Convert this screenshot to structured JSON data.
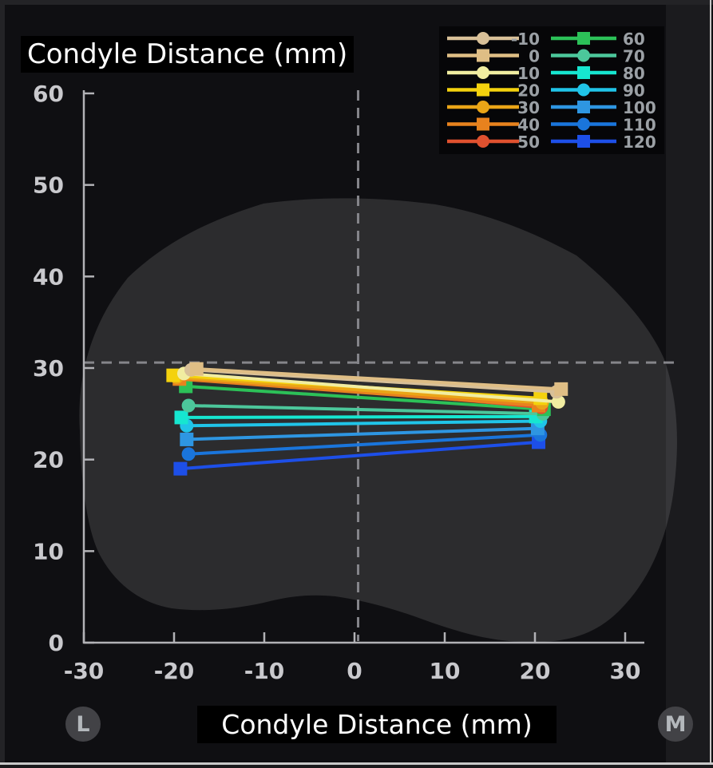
{
  "title": "Condyle Distance (mm)",
  "xlabel": "Condyle Distance (mm)",
  "side_labels": {
    "left": "L",
    "right": "M"
  },
  "colors": {
    "background": "#0f0f12",
    "outline_blob": "rgba(255,255,255,0.12)",
    "axis": "#b2b2b6",
    "tick_label": "#c9c9cd",
    "legend_label": "#9ba0a5",
    "dashed_reference": "#85858a",
    "label_box_bg": "#000000",
    "badge_bg": "#424246"
  },
  "chart_data": {
    "type": "line",
    "title": "Condyle Distance (mm)",
    "xlabel": "Condyle Distance (mm)",
    "ylabel": "Condyle Distance (mm)",
    "xlim": [
      -30,
      30
    ],
    "ylim": [
      0,
      60
    ],
    "xticks": [
      -30,
      -20,
      -10,
      0,
      10,
      20,
      30
    ],
    "yticks": [
      0,
      10,
      20,
      30,
      40,
      50,
      60
    ],
    "grid": false,
    "legend_position": "top-right",
    "legend_columns": 2,
    "reference_lines": [
      {
        "orientation": "vertical",
        "x": 0.4,
        "style": "dashed"
      },
      {
        "orientation": "horizontal",
        "y": 30.6,
        "style": "dashed"
      }
    ],
    "series": [
      {
        "name": "-10",
        "color": "#d8c098",
        "marker": "circle",
        "points": [
          [
            -18.1,
            29.8
          ],
          [
            22.4,
            27.4
          ]
        ]
      },
      {
        "name": "0",
        "color": "#dfbe85",
        "marker": "square",
        "points": [
          [
            -17.5,
            29.9
          ],
          [
            22.9,
            27.7
          ]
        ]
      },
      {
        "name": "10",
        "color": "#f1eda1",
        "marker": "circle",
        "points": [
          [
            -18.9,
            29.4
          ],
          [
            22.6,
            26.3
          ]
        ]
      },
      {
        "name": "20",
        "color": "#f4d20e",
        "marker": "square",
        "points": [
          [
            -20.1,
            29.2
          ],
          [
            20.6,
            26.7
          ]
        ]
      },
      {
        "name": "30",
        "color": "#eaa517",
        "marker": "circle",
        "points": [
          [
            -19.7,
            29.0
          ],
          [
            20.8,
            26.2
          ]
        ]
      },
      {
        "name": "40",
        "color": "#e8821e",
        "marker": "square",
        "points": [
          [
            -19.4,
            28.8
          ],
          [
            20.4,
            25.9
          ]
        ]
      },
      {
        "name": "50",
        "color": "#e0512f",
        "marker": "circle",
        "points": [
          [
            -18.8,
            29.3
          ],
          [
            20.7,
            25.7
          ]
        ]
      },
      {
        "name": "60",
        "color": "#2cc158",
        "marker": "square",
        "points": [
          [
            -18.7,
            28.0
          ],
          [
            21.0,
            25.5
          ]
        ]
      },
      {
        "name": "70",
        "color": "#4cc79b",
        "marker": "circle",
        "points": [
          [
            -18.4,
            25.9
          ],
          [
            20.9,
            25.0
          ]
        ]
      },
      {
        "name": "80",
        "color": "#16e6d0",
        "marker": "square",
        "points": [
          [
            -19.2,
            24.6
          ],
          [
            20.1,
            24.7
          ]
        ]
      },
      {
        "name": "90",
        "color": "#20c4e8",
        "marker": "circle",
        "points": [
          [
            -18.6,
            23.7
          ],
          [
            20.6,
            24.2
          ]
        ]
      },
      {
        "name": "100",
        "color": "#2e96e2",
        "marker": "square",
        "points": [
          [
            -18.6,
            22.2
          ],
          [
            20.3,
            23.4
          ]
        ]
      },
      {
        "name": "110",
        "color": "#1a75db",
        "marker": "circle",
        "points": [
          [
            -18.4,
            20.6
          ],
          [
            20.6,
            22.7
          ]
        ]
      },
      {
        "name": "120",
        "color": "#1d4fe8",
        "marker": "square",
        "points": [
          [
            -19.3,
            19.0
          ],
          [
            20.4,
            21.9
          ]
        ]
      }
    ]
  }
}
